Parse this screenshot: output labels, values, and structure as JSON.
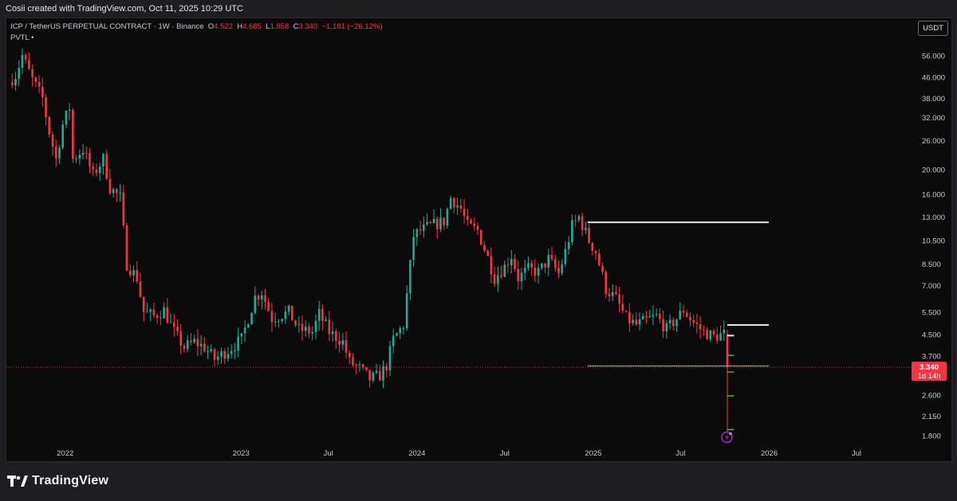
{
  "header": {
    "credit": "Cosii created with TradingView.com, Oct 11, 2025 10:29 UTC"
  },
  "legend": {
    "symbol": "ICP / TetherUS PERPETUAL CONTRACT · 1W · Binance",
    "o_label": "O",
    "o_value": "4.522",
    "h_label": "H",
    "h_value": "4.685",
    "l_label": "L",
    "l_value": "1.858",
    "c_label": "C",
    "c_value": "3.340",
    "change": "−1.181 (−26.12%)",
    "indicator": "PVTL",
    "indicator_dot": "•"
  },
  "currency_button": "USDT",
  "price_label": {
    "price": "3.340",
    "countdown": "1d 14h"
  },
  "branding": {
    "name": "TradingView"
  },
  "colors": {
    "up": "#22ab94",
    "down": "#f23645",
    "background": "#0b0b0c",
    "level_white": "#e6e6ea",
    "level_green": "#5fc64a",
    "flash_icon": "#a72fd8"
  },
  "icons": {
    "flash": "lightning-icon"
  },
  "chart_data": {
    "type": "candlestick",
    "scale": "log",
    "ylim": [
      1.65,
      68
    ],
    "y_ticks": [
      "56.000",
      "46.000",
      "38.000",
      "32.000",
      "26.000",
      "20.000",
      "16.000",
      "13.000",
      "10.500",
      "8.500",
      "7.000",
      "5.500",
      "4.500",
      "3.700",
      "2.600",
      "2.150",
      "1.800"
    ],
    "x_ticks": [
      "2022",
      "2023",
      "Jul",
      "2024",
      "Jul",
      "2025",
      "Jul",
      "2026",
      "Jul"
    ],
    "x_tick_dates": [
      "2022-01-01",
      "2023-01-01",
      "2023-07-01",
      "2024-01-01",
      "2024-07-01",
      "2025-01-01",
      "2025-07-01",
      "2026-01-01",
      "2026-07-01"
    ],
    "x_range": [
      "2021-09-01",
      "2026-10-20"
    ],
    "series_anchors": [
      [
        "2021-09-13",
        44
      ],
      [
        "2021-09-27",
        47
      ],
      [
        "2021-10-11",
        56
      ],
      [
        "2021-11-01",
        45
      ],
      [
        "2021-11-22",
        38
      ],
      [
        "2021-12-06",
        28
      ],
      [
        "2021-12-20",
        22
      ],
      [
        "2022-01-03",
        30
      ],
      [
        "2022-01-17",
        35
      ],
      [
        "2022-01-24",
        22
      ],
      [
        "2022-02-14",
        24
      ],
      [
        "2022-03-07",
        19
      ],
      [
        "2022-03-28",
        22
      ],
      [
        "2022-04-11",
        17
      ],
      [
        "2022-05-02",
        15.5
      ],
      [
        "2022-05-16",
        8.5
      ],
      [
        "2022-06-06",
        7.5
      ],
      [
        "2022-06-20",
        5.5
      ],
      [
        "2022-07-11",
        5.3
      ],
      [
        "2022-08-01",
        5.6
      ],
      [
        "2022-08-22",
        4.6
      ],
      [
        "2022-09-12",
        4.0
      ],
      [
        "2022-10-03",
        4.2
      ],
      [
        "2022-10-24",
        4.0
      ],
      [
        "2022-11-14",
        3.6
      ],
      [
        "2022-12-12",
        3.9
      ],
      [
        "2023-01-09",
        4.3
      ],
      [
        "2023-02-06",
        6.3
      ],
      [
        "2023-02-20",
        6.6
      ],
      [
        "2023-03-13",
        5.2
      ],
      [
        "2023-04-17",
        5.5
      ],
      [
        "2023-05-08",
        4.7
      ],
      [
        "2023-06-05",
        4.6
      ],
      [
        "2023-06-19",
        5.4
      ],
      [
        "2023-07-10",
        4.6
      ],
      [
        "2023-08-07",
        4.2
      ],
      [
        "2023-08-21",
        3.5
      ],
      [
        "2023-09-11",
        3.3
      ],
      [
        "2023-10-02",
        3.0
      ],
      [
        "2023-10-23",
        3.1
      ],
      [
        "2023-11-06",
        3.4
      ],
      [
        "2023-11-20",
        4.3
      ],
      [
        "2023-12-11",
        4.9
      ],
      [
        "2024-01-01",
        11.0
      ],
      [
        "2024-01-15",
        11.5
      ],
      [
        "2024-02-05",
        12.0
      ],
      [
        "2024-03-04",
        12.5
      ],
      [
        "2024-03-18",
        15.5
      ],
      [
        "2024-04-08",
        14.0
      ],
      [
        "2024-04-22",
        12.0
      ],
      [
        "2024-05-13",
        11.5
      ],
      [
        "2024-06-03",
        9.0
      ],
      [
        "2024-06-17",
        7.5
      ],
      [
        "2024-07-08",
        8.3
      ],
      [
        "2024-07-22",
        9.2
      ],
      [
        "2024-08-05",
        7.5
      ],
      [
        "2024-08-26",
        8.1
      ],
      [
        "2024-09-16",
        7.9
      ],
      [
        "2024-10-07",
        8.9
      ],
      [
        "2024-10-28",
        7.8
      ],
      [
        "2024-11-11",
        9.5
      ],
      [
        "2024-11-25",
        12.0
      ],
      [
        "2024-12-09",
        13.0
      ],
      [
        "2024-12-30",
        10.5
      ],
      [
        "2025-01-13",
        9.5
      ],
      [
        "2025-02-03",
        6.8
      ],
      [
        "2025-02-24",
        6.2
      ],
      [
        "2025-03-17",
        5.2
      ],
      [
        "2025-04-07",
        4.9
      ],
      [
        "2025-04-28",
        5.1
      ],
      [
        "2025-05-19",
        5.3
      ],
      [
        "2025-06-09",
        4.7
      ],
      [
        "2025-06-30",
        5.2
      ],
      [
        "2025-07-14",
        5.6
      ],
      [
        "2025-08-04",
        5.0
      ],
      [
        "2025-08-25",
        4.6
      ],
      [
        "2025-09-15",
        4.4
      ],
      [
        "2025-10-06",
        4.52
      ]
    ],
    "last_candle": {
      "date": "2025-10-06",
      "open": 4.522,
      "high": 4.685,
      "low": 1.858,
      "close": 3.34
    },
    "pivot_levels": [
      {
        "value": 12.4,
        "from": "2024-12-20",
        "to": "2025-12-31",
        "color": "white"
      },
      {
        "value": 4.9,
        "from": "2025-10-06",
        "to": "2025-12-31",
        "color": "white"
      },
      {
        "value": 4.45,
        "from": "2025-10-06",
        "to": "2025-10-20",
        "color": "white"
      },
      {
        "value": 3.72,
        "from": "2025-10-06",
        "to": "2025-10-20",
        "color": "green"
      },
      {
        "value": 3.38,
        "from": "2024-12-20",
        "to": "2025-12-31",
        "color": "green"
      },
      {
        "value": 3.2,
        "from": "2025-10-06",
        "to": "2025-10-20",
        "color": "green"
      },
      {
        "value": 2.58,
        "from": "2025-10-06",
        "to": "2025-10-20",
        "color": "green"
      },
      {
        "value": 1.9,
        "from": "2025-10-06",
        "to": "2025-10-20",
        "color": "green"
      }
    ],
    "current_price": 3.34
  }
}
